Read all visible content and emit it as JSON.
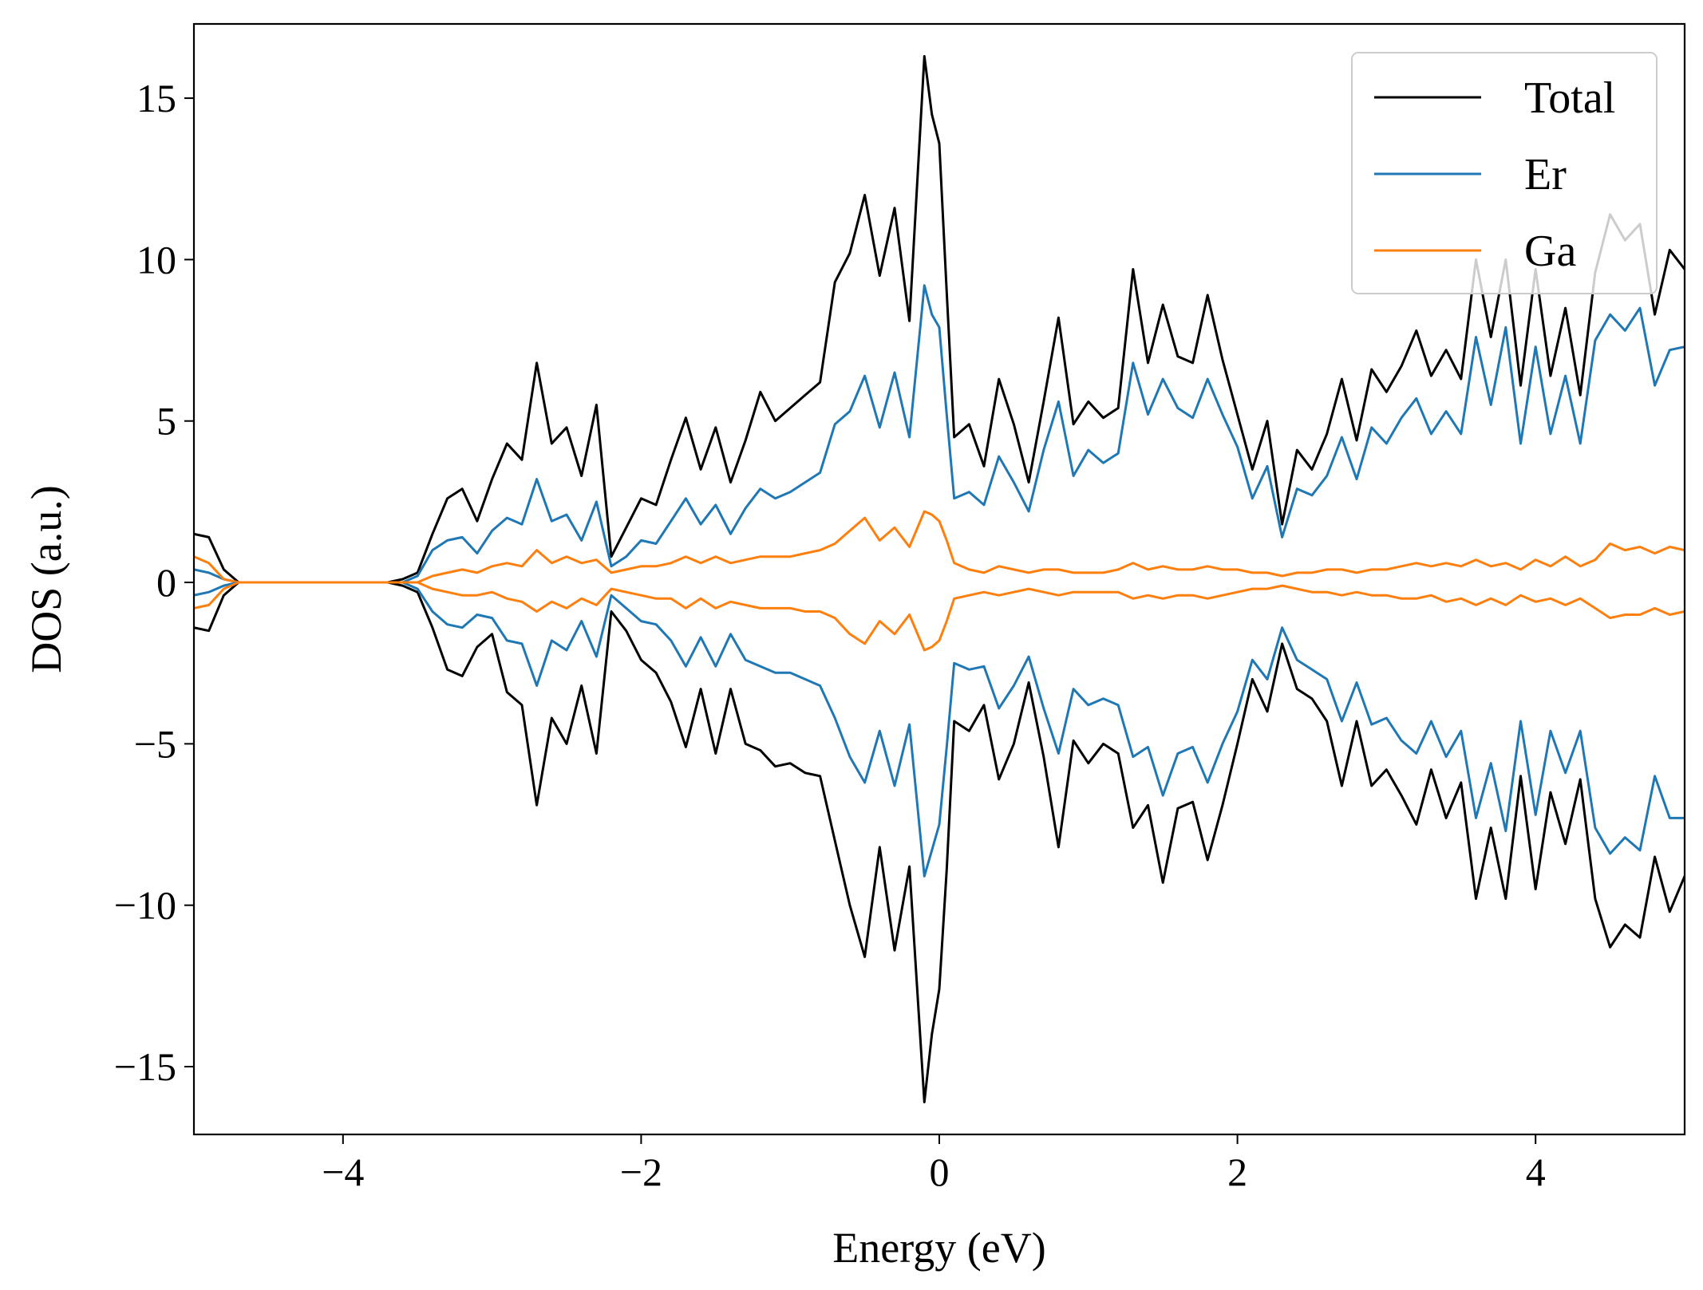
{
  "chart_data": {
    "type": "line",
    "xlabel": "Energy (eV)",
    "ylabel": "DOS (a.u.)",
    "xlim": [
      -5,
      5
    ],
    "ylim": [
      -17.1,
      17.3
    ],
    "xticks": [
      {
        "value": -4,
        "label": "−4"
      },
      {
        "value": -2,
        "label": "−2"
      },
      {
        "value": 0,
        "label": "0"
      },
      {
        "value": 2,
        "label": "2"
      },
      {
        "value": 4,
        "label": "4"
      }
    ],
    "yticks": [
      {
        "value": -15,
        "label": "−15"
      },
      {
        "value": -10,
        "label": "−10"
      },
      {
        "value": -5,
        "label": "−5"
      },
      {
        "value": 0,
        "label": "0"
      },
      {
        "value": 5,
        "label": "5"
      },
      {
        "value": 10,
        "label": "10"
      },
      {
        "value": 15,
        "label": "15"
      }
    ],
    "grid": false,
    "legend_position": "top-right",
    "x": [
      -5.0,
      -4.9,
      -4.8,
      -4.7,
      -4.6,
      -4.5,
      -4.0,
      -3.7,
      -3.6,
      -3.5,
      -3.4,
      -3.3,
      -3.2,
      -3.1,
      -3.0,
      -2.9,
      -2.8,
      -2.7,
      -2.6,
      -2.5,
      -2.4,
      -2.3,
      -2.2,
      -2.1,
      -2.0,
      -1.9,
      -1.8,
      -1.7,
      -1.6,
      -1.5,
      -1.4,
      -1.3,
      -1.2,
      -1.1,
      -1.0,
      -0.9,
      -0.8,
      -0.7,
      -0.6,
      -0.5,
      -0.4,
      -0.3,
      -0.2,
      -0.1,
      -0.05,
      0.0,
      0.05,
      0.1,
      0.2,
      0.3,
      0.4,
      0.5,
      0.6,
      0.7,
      0.8,
      0.9,
      1.0,
      1.1,
      1.2,
      1.3,
      1.4,
      1.5,
      1.6,
      1.7,
      1.8,
      1.9,
      2.0,
      2.1,
      2.2,
      2.3,
      2.4,
      2.5,
      2.6,
      2.7,
      2.8,
      2.9,
      3.0,
      3.1,
      3.2,
      3.3,
      3.4,
      3.5,
      3.6,
      3.7,
      3.8,
      3.9,
      4.0,
      4.1,
      4.2,
      4.3,
      4.4,
      4.5,
      4.6,
      4.7,
      4.8,
      4.9,
      5.0
    ],
    "series": [
      {
        "name": "Total",
        "color": "#000000",
        "values": [
          1.5,
          1.4,
          0.4,
          0.0,
          0.0,
          0.0,
          0.0,
          0.0,
          0.1,
          0.3,
          1.5,
          2.6,
          2.9,
          1.9,
          3.2,
          4.3,
          3.8,
          6.8,
          4.3,
          4.8,
          3.3,
          5.5,
          0.8,
          1.7,
          2.6,
          2.4,
          3.8,
          5.1,
          3.5,
          4.8,
          3.1,
          4.4,
          5.9,
          5.0,
          5.4,
          5.8,
          6.2,
          9.3,
          10.2,
          12.0,
          9.5,
          11.6,
          8.1,
          16.3,
          14.5,
          13.6,
          9.0,
          4.5,
          4.9,
          3.6,
          6.3,
          4.9,
          3.1,
          5.6,
          8.2,
          4.9,
          5.6,
          5.1,
          5.4,
          9.7,
          6.8,
          8.6,
          7.0,
          6.8,
          8.9,
          6.9,
          5.2,
          3.5,
          5.0,
          1.8,
          4.1,
          3.5,
          4.6,
          6.3,
          4.4,
          6.6,
          5.9,
          6.7,
          7.8,
          6.4,
          7.2,
          6.3,
          10.0,
          7.6,
          10.0,
          6.1,
          9.7,
          6.4,
          8.5,
          5.8,
          9.6,
          11.4,
          10.6,
          11.1,
          8.3,
          10.3,
          9.7
        ]
      },
      {
        "name": "Er",
        "color": "#1f77b4",
        "values": [
          0.4,
          0.3,
          0.1,
          0.0,
          0.0,
          0.0,
          0.0,
          0.0,
          0.0,
          0.2,
          1.0,
          1.3,
          1.4,
          0.9,
          1.6,
          2.0,
          1.8,
          3.2,
          1.9,
          2.1,
          1.3,
          2.5,
          0.5,
          0.8,
          1.3,
          1.2,
          1.9,
          2.6,
          1.8,
          2.4,
          1.5,
          2.3,
          2.9,
          2.6,
          2.8,
          3.1,
          3.4,
          4.9,
          5.3,
          6.4,
          4.8,
          6.5,
          4.5,
          9.2,
          8.3,
          7.9,
          5.2,
          2.6,
          2.8,
          2.4,
          3.9,
          3.1,
          2.2,
          4.1,
          5.6,
          3.3,
          4.1,
          3.7,
          4.0,
          6.8,
          5.2,
          6.3,
          5.4,
          5.1,
          6.3,
          5.2,
          4.2,
          2.6,
          3.6,
          1.4,
          2.9,
          2.7,
          3.3,
          4.5,
          3.2,
          4.8,
          4.3,
          5.1,
          5.7,
          4.6,
          5.3,
          4.6,
          7.6,
          5.5,
          7.9,
          4.3,
          7.3,
          4.6,
          6.4,
          4.3,
          7.5,
          8.3,
          7.8,
          8.5,
          6.1,
          7.2,
          7.3
        ]
      },
      {
        "name": "Ga",
        "color": "#ff7f0e",
        "values": [
          0.8,
          0.6,
          0.1,
          0.0,
          0.0,
          0.0,
          0.0,
          0.0,
          0.0,
          0.0,
          0.2,
          0.3,
          0.4,
          0.3,
          0.5,
          0.6,
          0.5,
          1.0,
          0.6,
          0.8,
          0.6,
          0.7,
          0.3,
          0.4,
          0.5,
          0.5,
          0.6,
          0.8,
          0.6,
          0.8,
          0.6,
          0.7,
          0.8,
          0.8,
          0.8,
          0.9,
          1.0,
          1.2,
          1.6,
          2.0,
          1.3,
          1.7,
          1.1,
          2.2,
          2.1,
          1.9,
          1.3,
          0.6,
          0.4,
          0.3,
          0.5,
          0.4,
          0.3,
          0.4,
          0.4,
          0.3,
          0.3,
          0.3,
          0.4,
          0.6,
          0.4,
          0.5,
          0.4,
          0.4,
          0.5,
          0.4,
          0.4,
          0.3,
          0.3,
          0.2,
          0.3,
          0.3,
          0.4,
          0.4,
          0.3,
          0.4,
          0.4,
          0.5,
          0.6,
          0.5,
          0.6,
          0.5,
          0.7,
          0.5,
          0.6,
          0.4,
          0.7,
          0.5,
          0.8,
          0.5,
          0.7,
          1.2,
          1.0,
          1.1,
          0.9,
          1.1,
          1.0
        ]
      },
      {
        "name": "",
        "legend": false,
        "color": "#000000",
        "values": [
          -1.4,
          -1.5,
          -0.4,
          0.0,
          0.0,
          0.0,
          0.0,
          0.0,
          -0.1,
          -0.3,
          -1.4,
          -2.7,
          -2.9,
          -2.0,
          -1.6,
          -3.4,
          -3.8,
          -6.9,
          -4.2,
          -5.0,
          -3.2,
          -5.3,
          -0.9,
          -1.5,
          -2.4,
          -2.8,
          -3.7,
          -5.1,
          -3.3,
          -5.3,
          -3.3,
          -5.0,
          -5.2,
          -5.7,
          -5.6,
          -5.9,
          -6.0,
          -8.0,
          -10.0,
          -11.6,
          -8.2,
          -11.4,
          -8.8,
          -16.1,
          -14.0,
          -12.6,
          -8.9,
          -4.3,
          -4.6,
          -3.8,
          -6.1,
          -5.0,
          -3.1,
          -5.4,
          -8.2,
          -4.9,
          -5.6,
          -5.0,
          -5.3,
          -7.6,
          -6.9,
          -9.3,
          -7.0,
          -6.8,
          -8.6,
          -6.9,
          -5.0,
          -3.0,
          -4.0,
          -1.9,
          -3.3,
          -3.6,
          -4.3,
          -6.3,
          -4.3,
          -6.3,
          -5.8,
          -6.6,
          -7.5,
          -5.8,
          -7.3,
          -6.2,
          -9.8,
          -7.6,
          -9.8,
          -6.0,
          -9.5,
          -6.5,
          -8.1,
          -6.1,
          -9.8,
          -11.3,
          -10.6,
          -11.0,
          -8.5,
          -10.2,
          -9.1
        ]
      },
      {
        "name": "",
        "legend": false,
        "color": "#1f77b4",
        "values": [
          -0.4,
          -0.3,
          -0.1,
          0.0,
          0.0,
          0.0,
          0.0,
          0.0,
          0.0,
          -0.2,
          -0.9,
          -1.3,
          -1.4,
          -1.0,
          -1.1,
          -1.8,
          -1.9,
          -3.2,
          -1.8,
          -2.1,
          -1.2,
          -2.3,
          -0.4,
          -0.8,
          -1.2,
          -1.3,
          -1.8,
          -2.6,
          -1.7,
          -2.6,
          -1.6,
          -2.4,
          -2.6,
          -2.8,
          -2.8,
          -3.0,
          -3.2,
          -4.2,
          -5.4,
          -6.2,
          -4.6,
          -6.3,
          -4.4,
          -9.1,
          -8.3,
          -7.5,
          -5.1,
          -2.5,
          -2.7,
          -2.6,
          -3.9,
          -3.2,
          -2.3,
          -3.9,
          -5.3,
          -3.3,
          -3.8,
          -3.6,
          -3.8,
          -5.4,
          -5.1,
          -6.6,
          -5.3,
          -5.1,
          -6.2,
          -5.0,
          -4.0,
          -2.4,
          -3.0,
          -1.4,
          -2.4,
          -2.7,
          -3.0,
          -4.3,
          -3.1,
          -4.4,
          -4.2,
          -4.9,
          -5.3,
          -4.3,
          -5.4,
          -4.6,
          -7.3,
          -5.6,
          -7.7,
          -4.3,
          -7.2,
          -4.6,
          -5.9,
          -4.6,
          -7.6,
          -8.4,
          -7.9,
          -8.3,
          -6.0,
          -7.3,
          -7.3
        ]
      },
      {
        "name": "",
        "legend": false,
        "color": "#ff7f0e",
        "values": [
          -0.8,
          -0.7,
          -0.2,
          0.0,
          0.0,
          0.0,
          0.0,
          0.0,
          0.0,
          0.0,
          -0.2,
          -0.3,
          -0.4,
          -0.4,
          -0.3,
          -0.5,
          -0.6,
          -0.9,
          -0.6,
          -0.8,
          -0.5,
          -0.7,
          -0.2,
          -0.3,
          -0.4,
          -0.5,
          -0.5,
          -0.8,
          -0.5,
          -0.8,
          -0.6,
          -0.7,
          -0.8,
          -0.8,
          -0.8,
          -0.9,
          -0.9,
          -1.1,
          -1.6,
          -1.9,
          -1.2,
          -1.6,
          -1.0,
          -2.1,
          -2.0,
          -1.8,
          -1.2,
          -0.5,
          -0.4,
          -0.3,
          -0.4,
          -0.3,
          -0.2,
          -0.3,
          -0.4,
          -0.3,
          -0.3,
          -0.3,
          -0.3,
          -0.5,
          -0.4,
          -0.5,
          -0.4,
          -0.4,
          -0.5,
          -0.4,
          -0.3,
          -0.2,
          -0.2,
          -0.1,
          -0.2,
          -0.3,
          -0.3,
          -0.4,
          -0.3,
          -0.4,
          -0.4,
          -0.5,
          -0.5,
          -0.4,
          -0.6,
          -0.5,
          -0.7,
          -0.5,
          -0.7,
          -0.4,
          -0.6,
          -0.5,
          -0.7,
          -0.5,
          -0.8,
          -1.1,
          -1.0,
          -1.0,
          -0.8,
          -1.0,
          -0.9
        ]
      }
    ]
  }
}
